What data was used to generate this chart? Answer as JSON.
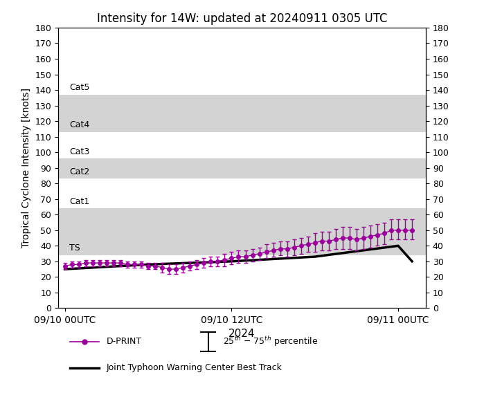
{
  "title": "Intensity for 14W: updated at 20240911 0305 UTC",
  "xlabel": "2024",
  "ylabel": "Tropical Cyclone Intensity [knots]",
  "ylim": [
    0,
    180
  ],
  "yticks": [
    0,
    10,
    20,
    30,
    40,
    50,
    60,
    70,
    80,
    90,
    100,
    110,
    120,
    130,
    140,
    150,
    160,
    170,
    180
  ],
  "xtick_labels": [
    "09/10 00UTC",
    "09/10 12UTC",
    "09/11 00UTC"
  ],
  "xtick_positions": [
    0,
    12,
    24
  ],
  "xlim": [
    -0.5,
    26
  ],
  "cat_bands": [
    {
      "name": "TS",
      "ymin": 34,
      "ymax": 64,
      "color": "#d3d3d3"
    },
    {
      "name": "Cat1",
      "ymin": 64,
      "ymax": 83,
      "color": "#ffffff"
    },
    {
      "name": "Cat2",
      "ymin": 83,
      "ymax": 96,
      "color": "#d3d3d3"
    },
    {
      "name": "Cat3",
      "ymin": 96,
      "ymax": 113,
      "color": "#ffffff"
    },
    {
      "name": "Cat4",
      "ymin": 113,
      "ymax": 137,
      "color": "#d3d3d3"
    },
    {
      "name": "Cat5",
      "ymin": 137,
      "ymax": 180,
      "color": "#ffffff"
    }
  ],
  "dprint_color": "#990099",
  "best_track_color": "#000000",
  "dprint_times": [
    0,
    0.5,
    1,
    1.5,
    2,
    2.5,
    3,
    3.5,
    4,
    4.5,
    5,
    5.5,
    6,
    6.5,
    7,
    7.5,
    8,
    8.5,
    9,
    9.5,
    10,
    10.5,
    11,
    11.5,
    12,
    12.5,
    13,
    13.5,
    14,
    14.5,
    15,
    15.5,
    16,
    16.5,
    17,
    17.5,
    18,
    18.5,
    19,
    19.5,
    20,
    20.5,
    21,
    21.5,
    22,
    22.5,
    23,
    23.5,
    24,
    24.5,
    25
  ],
  "dprint_vals": [
    27,
    28,
    28,
    29,
    29,
    29,
    29,
    29,
    29,
    28,
    28,
    28,
    27,
    27,
    26,
    25,
    25,
    26,
    27,
    28,
    29,
    30,
    30,
    31,
    32,
    33,
    33,
    34,
    35,
    36,
    37,
    38,
    38,
    39,
    40,
    41,
    42,
    43,
    43,
    44,
    45,
    45,
    44,
    45,
    46,
    47,
    48,
    50,
    50,
    50,
    50
  ],
  "dprint_lower": [
    25,
    26,
    26,
    27,
    27,
    27,
    27,
    27,
    27,
    26,
    26,
    26,
    25,
    25,
    23,
    22,
    22,
    23,
    24,
    25,
    26,
    27,
    27,
    27,
    28,
    29,
    29,
    30,
    31,
    32,
    33,
    34,
    33,
    34,
    35,
    36,
    36,
    37,
    37,
    38,
    38,
    38,
    37,
    38,
    39,
    40,
    41,
    44,
    44,
    44,
    44
  ],
  "dprint_upper": [
    29,
    30,
    30,
    31,
    31,
    31,
    31,
    31,
    31,
    30,
    30,
    30,
    29,
    29,
    29,
    28,
    28,
    29,
    30,
    31,
    32,
    33,
    33,
    35,
    36,
    37,
    37,
    38,
    39,
    41,
    42,
    43,
    43,
    44,
    45,
    46,
    48,
    49,
    49,
    51,
    52,
    52,
    51,
    52,
    53,
    54,
    55,
    57,
    57,
    57,
    57
  ],
  "best_track_times": [
    0,
    6,
    12,
    18,
    24,
    25
  ],
  "best_track_vals": [
    25,
    28,
    30,
    33,
    40,
    30
  ],
  "figsize": [
    6.99,
    5.71
  ],
  "dpi": 100
}
